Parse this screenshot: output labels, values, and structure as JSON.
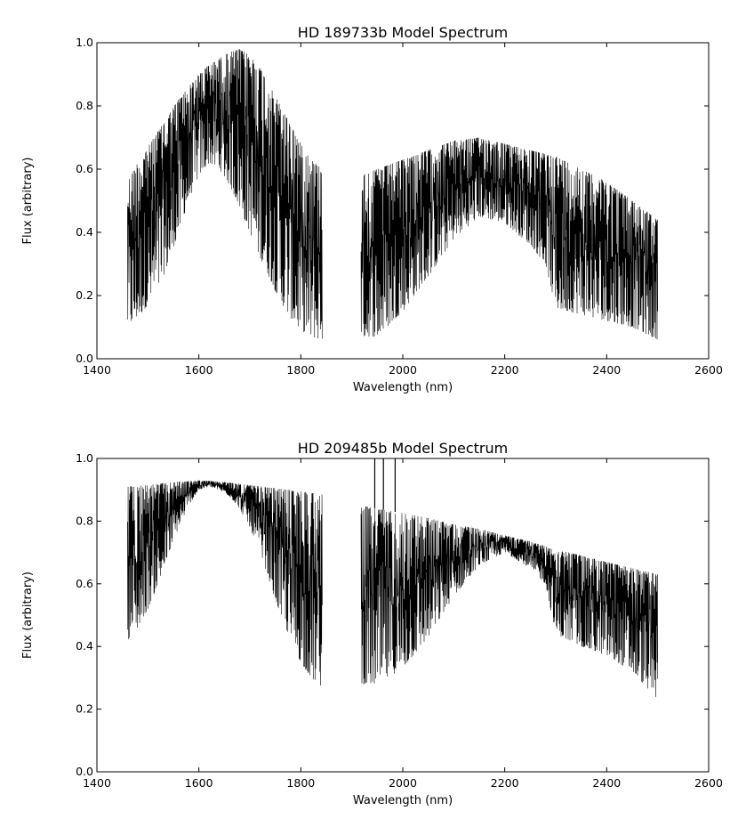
{
  "chart_data": [
    {
      "type": "line",
      "title": "HD 189733b Model Spectrum",
      "xlabel": "Wavelength (nm)",
      "ylabel": "Flux (arbitrary)",
      "xlim": [
        1400,
        2600
      ],
      "ylim": [
        0.0,
        1.0
      ],
      "xticks": [
        "1400",
        "1600",
        "1800",
        "2000",
        "2200",
        "2400",
        "2600"
      ],
      "yticks": [
        "0.0",
        "0.2",
        "0.4",
        "0.6",
        "0.8",
        "1.0"
      ],
      "grid": false,
      "line_color": "#000000",
      "segments": [
        {
          "x_range": [
            1460,
            1842
          ],
          "upper_envelope": [
            [
              1460,
              0.56
            ],
            [
              1480,
              0.62
            ],
            [
              1500,
              0.67
            ],
            [
              1520,
              0.72
            ],
            [
              1540,
              0.77
            ],
            [
              1560,
              0.82
            ],
            [
              1580,
              0.86
            ],
            [
              1600,
              0.9
            ],
            [
              1620,
              0.93
            ],
            [
              1640,
              0.95
            ],
            [
              1660,
              0.97
            ],
            [
              1680,
              0.98
            ],
            [
              1700,
              0.96
            ],
            [
              1720,
              0.92
            ],
            [
              1740,
              0.86
            ],
            [
              1760,
              0.8
            ],
            [
              1780,
              0.74
            ],
            [
              1800,
              0.68
            ],
            [
              1820,
              0.63
            ],
            [
              1842,
              0.6
            ]
          ],
          "lower_envelope": [
            [
              1460,
              0.1
            ],
            [
              1480,
              0.13
            ],
            [
              1500,
              0.17
            ],
            [
              1520,
              0.22
            ],
            [
              1540,
              0.3
            ],
            [
              1560,
              0.4
            ],
            [
              1580,
              0.5
            ],
            [
              1600,
              0.58
            ],
            [
              1620,
              0.62
            ],
            [
              1640,
              0.6
            ],
            [
              1660,
              0.55
            ],
            [
              1680,
              0.48
            ],
            [
              1700,
              0.4
            ],
            [
              1720,
              0.32
            ],
            [
              1740,
              0.25
            ],
            [
              1760,
              0.18
            ],
            [
              1780,
              0.13
            ],
            [
              1800,
              0.09
            ],
            [
              1820,
              0.07
            ],
            [
              1842,
              0.06
            ]
          ]
        },
        {
          "x_range": [
            1918,
            2500
          ],
          "upper_envelope": [
            [
              1918,
              0.58
            ],
            [
              1950,
              0.6
            ],
            [
              2000,
              0.63
            ],
            [
              2050,
              0.66
            ],
            [
              2100,
              0.69
            ],
            [
              2150,
              0.7
            ],
            [
              2200,
              0.68
            ],
            [
              2250,
              0.66
            ],
            [
              2300,
              0.64
            ],
            [
              2350,
              0.6
            ],
            [
              2400,
              0.56
            ],
            [
              2450,
              0.5
            ],
            [
              2500,
              0.44
            ]
          ],
          "lower_envelope": [
            [
              1918,
              0.07
            ],
            [
              1950,
              0.07
            ],
            [
              2000,
              0.15
            ],
            [
              2050,
              0.26
            ],
            [
              2100,
              0.38
            ],
            [
              2150,
              0.45
            ],
            [
              2200,
              0.43
            ],
            [
              2250,
              0.36
            ],
            [
              2280,
              0.3
            ],
            [
              2300,
              0.16
            ],
            [
              2350,
              0.14
            ],
            [
              2400,
              0.12
            ],
            [
              2450,
              0.1
            ],
            [
              2500,
              0.06
            ]
          ]
        }
      ]
    },
    {
      "type": "line",
      "title": "HD 209485b Model Spectrum",
      "xlabel": "Wavelength (nm)",
      "ylabel": "Flux (arbitrary)",
      "xlim": [
        1400,
        2600
      ],
      "ylim": [
        0.0,
        1.0
      ],
      "xticks": [
        "1400",
        "1600",
        "1800",
        "2000",
        "2200",
        "2400",
        "2600"
      ],
      "yticks": [
        "0.0",
        "0.2",
        "0.4",
        "0.6",
        "0.8",
        "1.0"
      ],
      "grid": false,
      "line_color": "#000000",
      "segments": [
        {
          "x_range": [
            1460,
            1842
          ],
          "upper_envelope": [
            [
              1460,
              0.91
            ],
            [
              1500,
              0.915
            ],
            [
              1550,
              0.925
            ],
            [
              1600,
              0.93
            ],
            [
              1650,
              0.925
            ],
            [
              1700,
              0.915
            ],
            [
              1750,
              0.905
            ],
            [
              1800,
              0.895
            ],
            [
              1842,
              0.885
            ]
          ],
          "lower_envelope": [
            [
              1460,
              0.42
            ],
            [
              1480,
              0.46
            ],
            [
              1500,
              0.52
            ],
            [
              1520,
              0.6
            ],
            [
              1540,
              0.69
            ],
            [
              1560,
              0.78
            ],
            [
              1580,
              0.85
            ],
            [
              1600,
              0.9
            ],
            [
              1620,
              0.91
            ],
            [
              1640,
              0.9
            ],
            [
              1660,
              0.88
            ],
            [
              1680,
              0.84
            ],
            [
              1700,
              0.78
            ],
            [
              1720,
              0.7
            ],
            [
              1740,
              0.6
            ],
            [
              1760,
              0.5
            ],
            [
              1780,
              0.42
            ],
            [
              1800,
              0.35
            ],
            [
              1820,
              0.3
            ],
            [
              1842,
              0.27
            ]
          ]
        },
        {
          "x_range": [
            1918,
            2500
          ],
          "upper_envelope": [
            [
              1918,
              0.85
            ],
            [
              1950,
              0.84
            ],
            [
              2000,
              0.825
            ],
            [
              2050,
              0.81
            ],
            [
              2100,
              0.79
            ],
            [
              2150,
              0.775
            ],
            [
              2200,
              0.755
            ],
            [
              2250,
              0.735
            ],
            [
              2300,
              0.71
            ],
            [
              2350,
              0.69
            ],
            [
              2400,
              0.67
            ],
            [
              2450,
              0.65
            ],
            [
              2500,
              0.63
            ]
          ],
          "lower_envelope": [
            [
              1918,
              0.28
            ],
            [
              1950,
              0.28
            ],
            [
              2000,
              0.33
            ],
            [
              2050,
              0.43
            ],
            [
              2100,
              0.56
            ],
            [
              2150,
              0.66
            ],
            [
              2200,
              0.7
            ],
            [
              2250,
              0.65
            ],
            [
              2280,
              0.6
            ],
            [
              2300,
              0.44
            ],
            [
              2350,
              0.4
            ],
            [
              2400,
              0.37
            ],
            [
              2450,
              0.32
            ],
            [
              2500,
              0.23
            ]
          ],
          "spikes": [
            [
              1945,
              1.0
            ],
            [
              1962,
              1.0
            ],
            [
              1985,
              1.0
            ]
          ]
        }
      ]
    }
  ]
}
